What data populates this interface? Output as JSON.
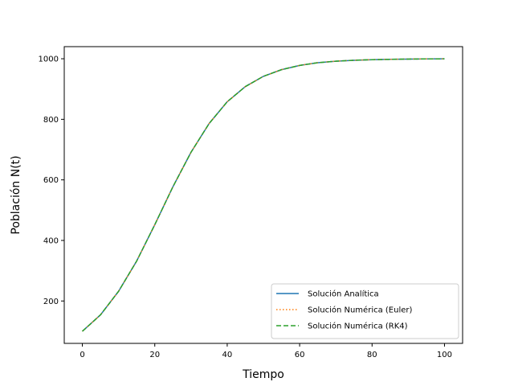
{
  "chart_data": {
    "type": "line",
    "xlabel": "Tiempo",
    "ylabel": "Población N(t)",
    "xlim": [
      -5,
      105
    ],
    "ylim": [
      60,
      1040
    ],
    "xticks": [
      0,
      20,
      40,
      60,
      80,
      100
    ],
    "yticks": [
      200,
      400,
      600,
      800,
      1000
    ],
    "grid": false,
    "legend_position": "lower-right",
    "x": [
      0,
      5,
      10,
      15,
      20,
      25,
      30,
      35,
      40,
      45,
      50,
      55,
      60,
      65,
      70,
      75,
      80,
      85,
      90,
      95,
      100
    ],
    "series": [
      {
        "name": "Solución Analítica",
        "color": "#1f77b4",
        "style": "solid",
        "values": [
          100,
          154,
          232,
          332,
          452,
          577,
          691,
          786,
          858,
          908,
          942,
          964,
          978,
          987,
          992,
          995,
          997,
          998,
          999,
          999.5,
          999.7
        ]
      },
      {
        "name": "Solución Numérica (Euler)",
        "color": "#ff7f0e",
        "style": "dotted",
        "values": [
          100,
          154,
          232,
          332,
          452,
          577,
          691,
          786,
          858,
          908,
          942,
          964,
          978,
          987,
          992,
          995,
          997,
          998,
          999,
          999.5,
          999.7
        ]
      },
      {
        "name": "Solución Numérica (RK4)",
        "color": "#2ca02c",
        "style": "dashed",
        "values": [
          100,
          154,
          232,
          332,
          452,
          577,
          691,
          786,
          858,
          908,
          942,
          964,
          978,
          987,
          992,
          995,
          997,
          998,
          999,
          999.5,
          999.7
        ]
      }
    ]
  }
}
